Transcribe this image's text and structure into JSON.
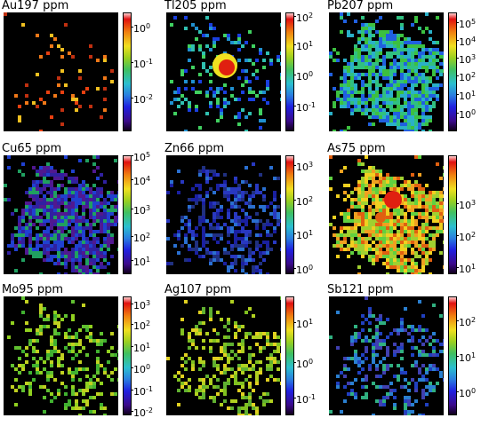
{
  "figure": {
    "panels": [
      {
        "title": "Au197 ppm",
        "ticks": [
          {
            "base": "10",
            "exp": "0"
          },
          {
            "base": "10",
            "exp": "-1"
          },
          {
            "base": "10",
            "exp": "-2"
          }
        ],
        "tick_fracs": [
          0.12,
          0.42,
          0.72
        ],
        "palette": [
          "#f07818",
          "#e84010",
          "#f0c020",
          "#c03010"
        ],
        "style": "sparse"
      },
      {
        "title": "Tl205 ppm",
        "ticks": [
          {
            "base": "10",
            "exp": "2"
          },
          {
            "base": "10",
            "exp": "1"
          },
          {
            "base": "10",
            "exp": "0"
          },
          {
            "base": "10",
            "exp": "-1"
          }
        ],
        "tick_fracs": [
          0.03,
          0.27,
          0.52,
          0.78
        ],
        "palette": [
          "#1a40e0",
          "#2090d0",
          "#30c0b0",
          "#40d060"
        ],
        "style": "hot-center"
      },
      {
        "title": "Pb207 ppm",
        "ticks": [
          {
            "base": "10",
            "exp": "5"
          },
          {
            "base": "10",
            "exp": "4"
          },
          {
            "base": "10",
            "exp": "3"
          },
          {
            "base": "10",
            "exp": "2"
          },
          {
            "base": "10",
            "exp": "1"
          },
          {
            "base": "10",
            "exp": "0"
          }
        ],
        "tick_fracs": [
          0.08,
          0.23,
          0.38,
          0.53,
          0.69,
          0.84
        ],
        "palette": [
          "#2ab0c8",
          "#30c080",
          "#2060e0",
          "#3cc040"
        ],
        "style": "dense-blue-green"
      },
      {
        "title": "Cu65 ppm",
        "ticks": [
          {
            "base": "10",
            "exp": "5"
          },
          {
            "base": "10",
            "exp": "4"
          },
          {
            "base": "10",
            "exp": "3"
          },
          {
            "base": "10",
            "exp": "2"
          },
          {
            "base": "10",
            "exp": "1"
          }
        ],
        "tick_fracs": [
          0.0,
          0.2,
          0.45,
          0.68,
          0.88
        ],
        "palette": [
          "#3020a0",
          "#501890",
          "#2040d0",
          "#20a060"
        ],
        "style": "dense-purple"
      },
      {
        "title": "Zn66 ppm",
        "ticks": [
          {
            "base": "10",
            "exp": "3"
          },
          {
            "base": "10",
            "exp": "2"
          },
          {
            "base": "10",
            "exp": "1"
          },
          {
            "base": "10",
            "exp": "0"
          }
        ],
        "tick_fracs": [
          0.08,
          0.37,
          0.66,
          0.95
        ],
        "palette": [
          "#1a20a0",
          "#2838c0",
          "#203080",
          "#2a6fd0"
        ],
        "style": "dim-blue"
      },
      {
        "title": "As75 ppm",
        "ticks": [
          {
            "base": "10",
            "exp": "3"
          },
          {
            "base": "10",
            "exp": "2"
          },
          {
            "base": "10",
            "exp": "1"
          }
        ],
        "tick_fracs": [
          0.4,
          0.67,
          0.94
        ],
        "palette": [
          "#f0d020",
          "#f0a020",
          "#e06010",
          "#60d040",
          "#a0d030"
        ],
        "style": "dense-yellow"
      },
      {
        "title": "Mo95 ppm",
        "ticks": [
          {
            "base": "10",
            "exp": "3"
          },
          {
            "base": "10",
            "exp": "2"
          },
          {
            "base": "10",
            "exp": "1"
          },
          {
            "base": "10",
            "exp": "0"
          },
          {
            "base": "10",
            "exp": "-1"
          },
          {
            "base": "10",
            "exp": "-2"
          }
        ],
        "tick_fracs": [
          0.06,
          0.23,
          0.42,
          0.6,
          0.78,
          0.96
        ],
        "palette": [
          "#60c030",
          "#90d020",
          "#40b030",
          "#c0d020"
        ],
        "style": "green-scatter"
      },
      {
        "title": "Ag107 ppm",
        "ticks": [
          {
            "base": "10",
            "exp": "1"
          },
          {
            "base": "10",
            "exp": "0"
          },
          {
            "base": "10",
            "exp": "-1"
          }
        ],
        "tick_fracs": [
          0.22,
          0.55,
          0.85
        ],
        "palette": [
          "#b0d020",
          "#80c020",
          "#e0d020",
          "#60b030"
        ],
        "style": "yellow-green"
      },
      {
        "title": "Sb121 ppm",
        "ticks": [
          {
            "base": "10",
            "exp": "2"
          },
          {
            "base": "10",
            "exp": "1"
          },
          {
            "base": "10",
            "exp": "0"
          }
        ],
        "tick_fracs": [
          0.2,
          0.5,
          0.8
        ],
        "palette": [
          "#2040c0",
          "#2a7fd0",
          "#30b080",
          "#4040b0"
        ],
        "style": "blue-mix"
      }
    ]
  },
  "chart_data": [
    {
      "type": "heatmap",
      "title": "Au197 ppm",
      "colorbar_scale": "log",
      "colorbar_ticks": [
        "10^0",
        "10^-1",
        "10^-2"
      ]
    },
    {
      "type": "heatmap",
      "title": "Tl205 ppm",
      "colorbar_scale": "log",
      "colorbar_ticks": [
        "10^2",
        "10^1",
        "10^0",
        "10^-1"
      ]
    },
    {
      "type": "heatmap",
      "title": "Pb207 ppm",
      "colorbar_scale": "log",
      "colorbar_ticks": [
        "10^5",
        "10^4",
        "10^3",
        "10^2",
        "10^1",
        "10^0"
      ]
    },
    {
      "type": "heatmap",
      "title": "Cu65 ppm",
      "colorbar_scale": "log",
      "colorbar_ticks": [
        "10^5",
        "10^4",
        "10^3",
        "10^2",
        "10^1"
      ]
    },
    {
      "type": "heatmap",
      "title": "Zn66 ppm",
      "colorbar_scale": "log",
      "colorbar_ticks": [
        "10^3",
        "10^2",
        "10^1",
        "10^0"
      ]
    },
    {
      "type": "heatmap",
      "title": "As75 ppm",
      "colorbar_scale": "log",
      "colorbar_ticks": [
        "10^3",
        "10^2",
        "10^1"
      ]
    },
    {
      "type": "heatmap",
      "title": "Mo95 ppm",
      "colorbar_scale": "log",
      "colorbar_ticks": [
        "10^3",
        "10^2",
        "10^1",
        "10^0",
        "10^-1",
        "10^-2"
      ]
    },
    {
      "type": "heatmap",
      "title": "Ag107 ppm",
      "colorbar_scale": "log",
      "colorbar_ticks": [
        "10^1",
        "10^0",
        "10^-1"
      ]
    },
    {
      "type": "heatmap",
      "title": "Sb121 ppm",
      "colorbar_scale": "log",
      "colorbar_ticks": [
        "10^2",
        "10^1",
        "10^0"
      ]
    }
  ]
}
